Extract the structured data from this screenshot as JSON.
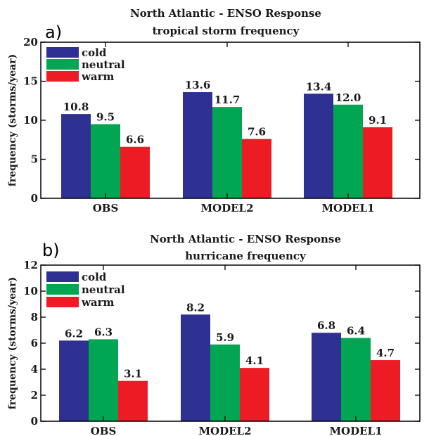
{
  "chart_data": [
    {
      "type": "bar",
      "panel_label": "a)",
      "title": "North Atlantic - ENSO Response",
      "subtitle": "tropical storm frequency",
      "ylabel": "frequency (storms/year)",
      "xlabel": "",
      "ylim": [
        0,
        20
      ],
      "yticks": [
        0,
        5,
        10,
        15,
        20
      ],
      "categories": [
        "OBS",
        "MODEL2",
        "MODEL1"
      ],
      "series": [
        {
          "name": "cold",
          "color": "#2e3192",
          "values": [
            10.8,
            13.6,
            13.4
          ],
          "labels": [
            "10.8",
            "13.6",
            "13.4"
          ]
        },
        {
          "name": "neutral",
          "color": "#00a651",
          "values": [
            9.5,
            11.7,
            12.0
          ],
          "labels": [
            "9.5",
            "11.7",
            "12.0"
          ]
        },
        {
          "name": "warm",
          "color": "#ed1c24",
          "values": [
            6.6,
            7.6,
            9.1
          ],
          "labels": [
            "6.6",
            "7.6",
            "9.1"
          ]
        }
      ],
      "legend": "top-left",
      "grid": false
    },
    {
      "type": "bar",
      "panel_label": "b)",
      "title": "North Atlantic - ENSO Response",
      "subtitle": "hurricane frequency",
      "ylabel": "frequency (storms/year)",
      "xlabel": "",
      "ylim": [
        0,
        12
      ],
      "yticks": [
        0,
        2,
        4,
        6,
        8,
        10,
        12
      ],
      "categories": [
        "OBS",
        "MODEL2",
        "MODEL1"
      ],
      "series": [
        {
          "name": "cold",
          "color": "#2e3192",
          "values": [
            6.2,
            8.2,
            6.8
          ],
          "labels": [
            "6.2",
            "8.2",
            "6.8"
          ]
        },
        {
          "name": "neutral",
          "color": "#00a651",
          "values": [
            6.3,
            5.9,
            6.4
          ],
          "labels": [
            "6.3",
            "5.9",
            "6.4"
          ]
        },
        {
          "name": "warm",
          "color": "#ed1c24",
          "values": [
            3.1,
            4.1,
            4.7
          ],
          "labels": [
            "3.1",
            "4.1",
            "4.7"
          ]
        }
      ],
      "legend": "top-left",
      "grid": false
    }
  ]
}
